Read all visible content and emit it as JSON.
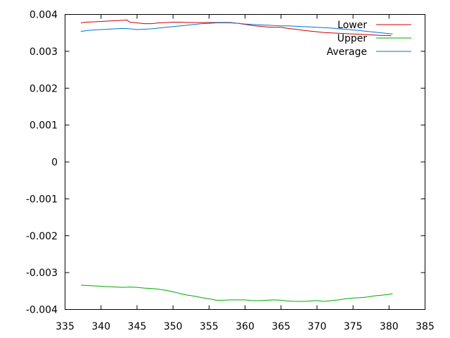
{
  "chart_data": {
    "type": "line",
    "title": "",
    "xlabel": "",
    "ylabel": "",
    "xlim": [
      335,
      385
    ],
    "ylim": [
      -0.004,
      0.004
    ],
    "x_ticks": [
      "335",
      "340",
      "345",
      "350",
      "355",
      "360",
      "365",
      "370",
      "375",
      "380",
      "385"
    ],
    "y_ticks": [
      "-0.004",
      "-0.003",
      "-0.002",
      "-0.001",
      "0",
      "0.001",
      "0.002",
      "0.003",
      "0.004"
    ],
    "grid": false,
    "legend_position": "top-right",
    "series": [
      {
        "name": "Lower",
        "color": "#cc0000",
        "x": [
          337.2,
          338,
          339,
          340,
          341,
          342,
          343,
          343.6,
          344,
          345,
          346,
          347,
          348,
          349,
          350,
          351,
          352,
          353,
          354,
          355,
          356,
          357,
          358,
          359,
          360,
          361,
          362,
          363,
          364,
          365,
          366,
          367,
          368,
          369,
          370,
          371,
          372,
          373,
          374,
          375,
          376,
          377,
          378,
          379,
          380,
          380.3
        ],
        "y": [
          0.00377,
          0.00379,
          0.0038,
          0.00381,
          0.00382,
          0.00383,
          0.00384,
          0.00385,
          0.00379,
          0.00377,
          0.00375,
          0.00375,
          0.00377,
          0.00378,
          0.00379,
          0.00379,
          0.00378,
          0.00378,
          0.00378,
          0.00378,
          0.00378,
          0.00378,
          0.00378,
          0.00376,
          0.00373,
          0.0037,
          0.00368,
          0.00366,
          0.00365,
          0.00365,
          0.00362,
          0.0036,
          0.00357,
          0.00355,
          0.00353,
          0.00351,
          0.0035,
          0.00349,
          0.00348,
          0.00347,
          0.00346,
          0.00345,
          0.00344,
          0.00343,
          0.00343,
          0.00342
        ]
      },
      {
        "name": "Upper",
        "color": "#00aa00",
        "x": [
          337.2,
          338,
          339,
          340,
          341,
          342,
          343,
          344,
          345,
          346,
          347,
          348,
          349,
          350,
          351,
          352,
          353,
          354,
          355,
          356,
          357,
          358,
          359,
          360,
          361,
          362,
          363,
          364,
          365,
          366,
          367,
          368,
          369,
          370,
          371,
          372,
          373,
          374,
          375,
          376,
          377,
          378,
          379,
          380,
          380.5
        ],
        "y": [
          -0.00334,
          -0.00335,
          -0.00336,
          -0.00337,
          -0.00338,
          -0.00339,
          -0.0034,
          -0.00339,
          -0.0034,
          -0.00342,
          -0.00343,
          -0.00345,
          -0.00348,
          -0.00352,
          -0.00357,
          -0.00361,
          -0.00364,
          -0.00368,
          -0.00371,
          -0.00375,
          -0.00375,
          -0.00374,
          -0.00374,
          -0.00374,
          -0.00376,
          -0.00376,
          -0.00375,
          -0.00374,
          -0.00375,
          -0.00377,
          -0.00378,
          -0.00378,
          -0.00377,
          -0.00376,
          -0.00378,
          -0.00376,
          -0.00374,
          -0.00371,
          -0.00369,
          -0.00368,
          -0.00366,
          -0.00363,
          -0.00361,
          -0.00359,
          -0.00357
        ]
      },
      {
        "name": "Average",
        "color": "#0072d6",
        "x": [
          337.2,
          338,
          339,
          340,
          341,
          342,
          343,
          344,
          345,
          346,
          347,
          348,
          349,
          350,
          351,
          352,
          353,
          354,
          355,
          356,
          357,
          358,
          359,
          360,
          361,
          362,
          363,
          364,
          365,
          366,
          367,
          368,
          369,
          370,
          371,
          372,
          373,
          374,
          375,
          376,
          377,
          378,
          379,
          380,
          380.5
        ],
        "y": [
          0.00354,
          0.00356,
          0.00358,
          0.00359,
          0.0036,
          0.00361,
          0.00362,
          0.00361,
          0.00359,
          0.0036,
          0.00361,
          0.00363,
          0.00365,
          0.00367,
          0.00369,
          0.00371,
          0.00373,
          0.00375,
          0.00376,
          0.00377,
          0.00377,
          0.00377,
          0.00376,
          0.00374,
          0.00373,
          0.00372,
          0.00371,
          0.0037,
          0.00369,
          0.00369,
          0.00368,
          0.00367,
          0.00366,
          0.00365,
          0.00364,
          0.00363,
          0.00361,
          0.0036,
          0.00358,
          0.00356,
          0.00354,
          0.00352,
          0.0035,
          0.00348,
          0.00347
        ]
      }
    ]
  }
}
